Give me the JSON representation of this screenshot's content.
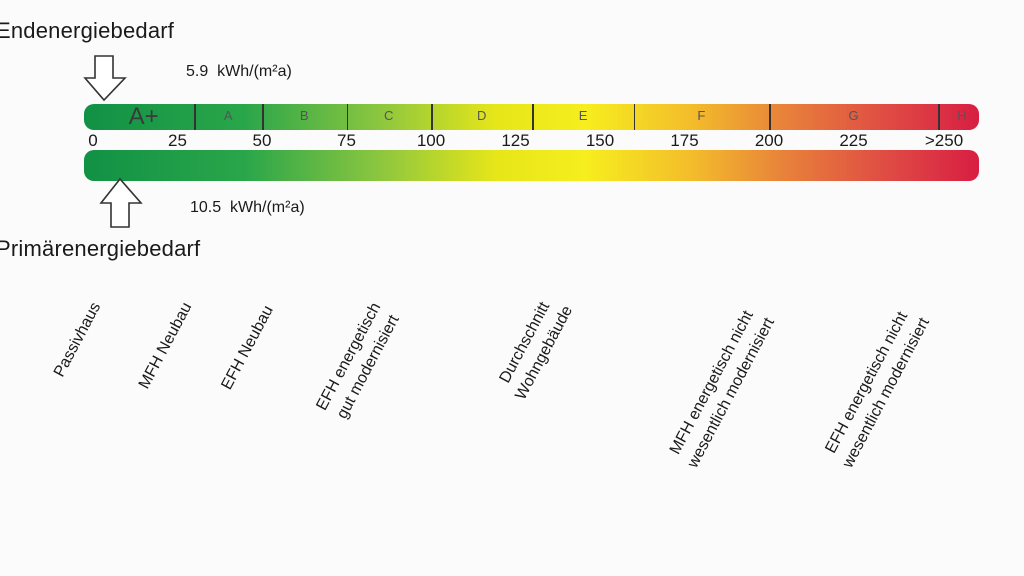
{
  "end_energy": {
    "title": "Endenergiebedarf",
    "value": "5.9",
    "unit": "kWh/(m²a)"
  },
  "primary_energy": {
    "title": "Primärenergiebedarf",
    "value": "10.5",
    "unit": "kWh/(m²a)"
  },
  "scale": {
    "min": 0,
    "max": 250,
    "ticks": [
      "0",
      "25",
      "50",
      "75",
      "100",
      "125",
      "150",
      "175",
      "200",
      "225",
      ">250"
    ],
    "classes": [
      {
        "label": "A+",
        "from": 0,
        "to": 30
      },
      {
        "label": "A",
        "from": 30,
        "to": 50
      },
      {
        "label": "B",
        "from": 50,
        "to": 75
      },
      {
        "label": "C",
        "from": 75,
        "to": 100
      },
      {
        "label": "D",
        "from": 100,
        "to": 130
      },
      {
        "label": "E",
        "from": 130,
        "to": 160
      },
      {
        "label": "F",
        "from": 160,
        "to": 200
      },
      {
        "label": "G",
        "from": 200,
        "to": 250
      },
      {
        "label": "H",
        "from": 250,
        "to": 260
      }
    ],
    "colors": {
      "start": "#119145",
      "middle": "#f6ee1e",
      "end": "#d81e43"
    }
  },
  "references": [
    {
      "lines": [
        "Passivhaus"
      ],
      "at": 15
    },
    {
      "lines": [
        "MFH Neubau"
      ],
      "at": 40
    },
    {
      "lines": [
        "EFH Neubau"
      ],
      "at": 60
    },
    {
      "lines": [
        "EFH energetisch",
        "gut modernisiert"
      ],
      "at": 80
    },
    {
      "lines": [
        "Durchschnitt",
        "Wohngebäude"
      ],
      "at": 160
    },
    {
      "lines": [
        "MFH energetisch nicht",
        "wesentlich modernisiert"
      ],
      "at": 218
    },
    {
      "lines": [
        "EFH energetisch nicht",
        "wesentlich modernisiert"
      ],
      "at": 272
    }
  ]
}
